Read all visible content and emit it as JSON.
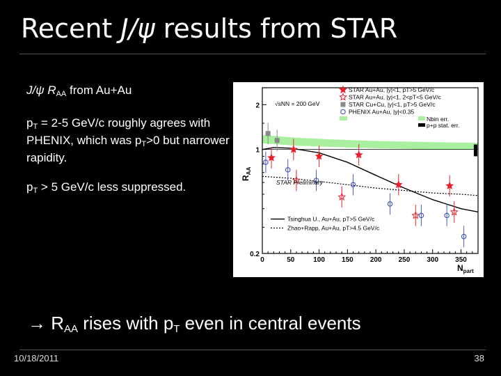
{
  "slide": {
    "title_prefix": "Recent ",
    "title_italic": "J/ψ",
    "title_suffix": " results from STAR",
    "heading": {
      "main": "J/ψ R",
      "sub": "AA",
      "tail": " from Au+Au"
    },
    "para1": {
      "a": "p",
      "sub1": "T",
      "b": " = 2-5 GeV/c roughly agrees with PHENIX, which was p",
      "sub2": "T",
      "c": ">0 but narrower rapidity."
    },
    "para2": {
      "a": "p",
      "sub1": "T",
      "b": " > 5 GeV/c less suppressed."
    },
    "conclusion": {
      "arrow": "→",
      "a": " R",
      "sub1": "AA",
      "b": " rises with p",
      "sub2": "T",
      "c": " even in central events"
    },
    "footer_date": "10/18/2011",
    "page_number": "38"
  },
  "chart_data": {
    "type": "scatter",
    "xlabel": "Npart",
    "ylabel": "RAA",
    "xlim": [
      0,
      380
    ],
    "ylim": [
      0.2,
      2.6
    ],
    "ylog": true,
    "x_ticks": [
      "0",
      "50",
      "100",
      "150",
      "200",
      "250",
      "300",
      "350"
    ],
    "y_ticks": [
      "0.2",
      "1",
      "2"
    ],
    "energy_label": "√sNN = 200 GeV",
    "watermark": "STAR Preliminary",
    "series": [
      {
        "name": "STAR Au+Au, |y|<1, pT>5 GeV/c",
        "color": "#e8202a",
        "marker": "star",
        "points": [
          [
            16,
            0.88
          ],
          [
            55,
            1.0
          ],
          [
            100,
            0.9
          ],
          [
            170,
            0.92
          ],
          [
            240,
            0.58
          ],
          [
            330,
            0.57
          ]
        ]
      },
      {
        "name": "STAR Au+Au, |y|<1, 2<pT<5 GeV/c",
        "color": "#e8202a",
        "marker": "star-open",
        "points": [
          [
            60,
            0.62
          ],
          [
            140,
            0.48
          ],
          [
            270,
            0.36
          ],
          [
            338,
            0.38
          ]
        ]
      },
      {
        "name": "STAR Cu+Cu, |y|<1, pT>5 GeV/c",
        "color": "#888888",
        "marker": "square",
        "points": [
          [
            10,
            1.28
          ],
          [
            26,
            1.15
          ]
        ]
      },
      {
        "name": "PHENIX Au+Au, |y|<0.35",
        "color": "#4a5cc0",
        "marker": "circle-open",
        "points": [
          [
            6,
            0.82
          ],
          [
            45,
            0.73
          ],
          [
            95,
            0.62
          ],
          [
            160,
            0.58
          ],
          [
            225,
            0.43
          ],
          [
            280,
            0.36
          ],
          [
            325,
            0.36
          ],
          [
            355,
            0.26
          ]
        ]
      }
    ],
    "legend_bands": [
      "Nbin err.",
      "p+p stat. err."
    ],
    "curves": [
      {
        "name": "Tsinghua U., Au+Au, pT>5 GeV/c",
        "points": [
          [
            0,
            1.0
          ],
          [
            20,
            1.03
          ],
          [
            50,
            1.02
          ],
          [
            100,
            0.95
          ],
          [
            150,
            0.82
          ],
          [
            200,
            0.67
          ],
          [
            250,
            0.55
          ],
          [
            300,
            0.46
          ],
          [
            350,
            0.4
          ],
          [
            380,
            0.38
          ]
        ]
      },
      {
        "name": "Zhao+Rapp, Au+Au, pT>4.5 GeV/c",
        "points": [
          [
            0,
            0.66
          ],
          [
            50,
            0.64
          ],
          [
            100,
            0.61
          ],
          [
            150,
            0.58
          ],
          [
            200,
            0.55
          ],
          [
            250,
            0.53
          ],
          [
            300,
            0.51
          ],
          [
            350,
            0.5
          ],
          [
            380,
            0.49
          ]
        ]
      }
    ],
    "nbin_band": [
      [
        0,
        1.1,
        1.25
      ],
      [
        60,
        1.06,
        1.2
      ],
      [
        120,
        1.04,
        1.17
      ],
      [
        200,
        1.02,
        1.14
      ],
      [
        300,
        1.0,
        1.12
      ],
      [
        380,
        1.0,
        1.11
      ]
    ],
    "pp_box": {
      "x": 375,
      "y0": 0.9,
      "y1": 1.08
    }
  }
}
